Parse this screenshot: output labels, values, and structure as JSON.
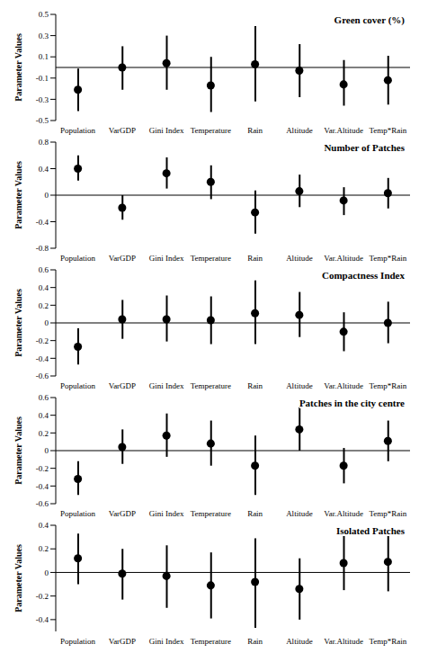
{
  "chart_data": [
    {
      "type": "errorbar",
      "title": "Green cover (%)",
      "y_label": "Parameter Values",
      "color": "#000000",
      "marker": "circle",
      "categories": [
        "Population",
        "VarGDP",
        "Gini Index",
        "Temperature",
        "Rain",
        "Altitude",
        "Var.Altitude",
        "Temp*Rain"
      ],
      "values": [
        -0.21,
        0.0,
        0.04,
        -0.17,
        0.03,
        -0.03,
        -0.16,
        -0.12
      ],
      "lower": [
        -0.41,
        -0.21,
        -0.21,
        -0.42,
        -0.32,
        -0.28,
        -0.36,
        -0.35
      ],
      "upper": [
        -0.01,
        0.2,
        0.3,
        0.1,
        0.39,
        0.22,
        0.07,
        0.11
      ],
      "ylim": [
        -0.5,
        0.5
      ],
      "yticks": [
        -0.5,
        -0.4,
        -0.3,
        -0.2,
        -0.1,
        0,
        0.1,
        0.2,
        0.3,
        0.4,
        0.5
      ]
    },
    {
      "type": "errorbar",
      "title": "Number of Patches",
      "y_label": "Parameter Values",
      "color": "#000000",
      "marker": "circle",
      "categories": [
        "Population",
        "VarGDP",
        "Gini Index",
        "Temperature",
        "Rain",
        "Altitude",
        "Var.Altitude",
        "Temp*Rain"
      ],
      "values": [
        0.4,
        -0.19,
        0.33,
        0.2,
        -0.26,
        0.06,
        -0.08,
        0.03
      ],
      "lower": [
        0.22,
        -0.37,
        0.1,
        -0.06,
        -0.58,
        -0.18,
        -0.3,
        -0.2
      ],
      "upper": [
        0.6,
        0.0,
        0.57,
        0.45,
        0.07,
        0.31,
        0.12,
        0.26
      ],
      "ylim": [
        -0.8,
        0.8
      ],
      "yticks": [
        -0.8,
        -0.6,
        -0.4,
        -0.2,
        0,
        0.2,
        0.4,
        0.6,
        0.8
      ]
    },
    {
      "type": "errorbar",
      "title": "Compactness Index",
      "y_label": "Parameter Values",
      "color": "#000000",
      "marker": "circle",
      "categories": [
        "Population",
        "VarGDP",
        "Gini Index",
        "Temperature",
        "Rain",
        "Altitude",
        "Var.Altitude",
        "Temp*Rain"
      ],
      "values": [
        -0.27,
        0.04,
        0.04,
        0.03,
        0.11,
        0.09,
        -0.1,
        0.0
      ],
      "lower": [
        -0.47,
        -0.18,
        -0.21,
        -0.24,
        -0.24,
        -0.16,
        -0.32,
        -0.23
      ],
      "upper": [
        -0.06,
        0.26,
        0.31,
        0.3,
        0.48,
        0.35,
        0.12,
        0.24
      ],
      "ylim": [
        -0.6,
        0.6
      ],
      "yticks": [
        -0.6,
        -0.4,
        -0.2,
        0,
        0.2,
        0.4,
        0.6
      ]
    },
    {
      "type": "errorbar",
      "title": "Patches in the city centre",
      "y_label": "Parameter Values",
      "color": "#000000",
      "marker": "circle",
      "categories": [
        "Population",
        "VarGDP",
        "Gini Index",
        "Temperature",
        "Rain",
        "Altitude",
        "Var.Altitude",
        "Temp*Rain"
      ],
      "values": [
        -0.32,
        0.04,
        0.17,
        0.08,
        -0.17,
        0.24,
        -0.17,
        0.11
      ],
      "lower": [
        -0.5,
        -0.15,
        -0.07,
        -0.17,
        -0.5,
        0.0,
        -0.37,
        -0.12
      ],
      "upper": [
        -0.12,
        0.24,
        0.42,
        0.34,
        0.17,
        0.49,
        0.03,
        0.34
      ],
      "ylim": [
        -0.6,
        0.6
      ],
      "yticks": [
        -0.6,
        -0.4,
        -0.2,
        0,
        0.2,
        0.4,
        0.6
      ]
    },
    {
      "type": "errorbar",
      "title": "Isolated Patches",
      "y_label": "Parameter Values",
      "color": "#000000",
      "marker": "circle",
      "categories": [
        "Population",
        "VarGDP",
        "Gini Index",
        "Temperature",
        "Rain",
        "Altitude",
        "Var.Altitude",
        "Temp*Rain"
      ],
      "values": [
        0.12,
        -0.01,
        -0.03,
        -0.11,
        -0.08,
        -0.14,
        0.08,
        0.09
      ],
      "lower": [
        -0.1,
        -0.23,
        -0.3,
        -0.39,
        -0.47,
        -0.4,
        -0.15,
        -0.16
      ],
      "upper": [
        0.33,
        0.2,
        0.23,
        0.17,
        0.29,
        0.12,
        0.31,
        0.33
      ],
      "ylim": [
        -0.5,
        0.4
      ],
      "yticks": [
        -0.5,
        -0.4,
        -0.3,
        -0.2,
        -0.1,
        0,
        0.1,
        0.2,
        0.3,
        0.4
      ]
    }
  ]
}
